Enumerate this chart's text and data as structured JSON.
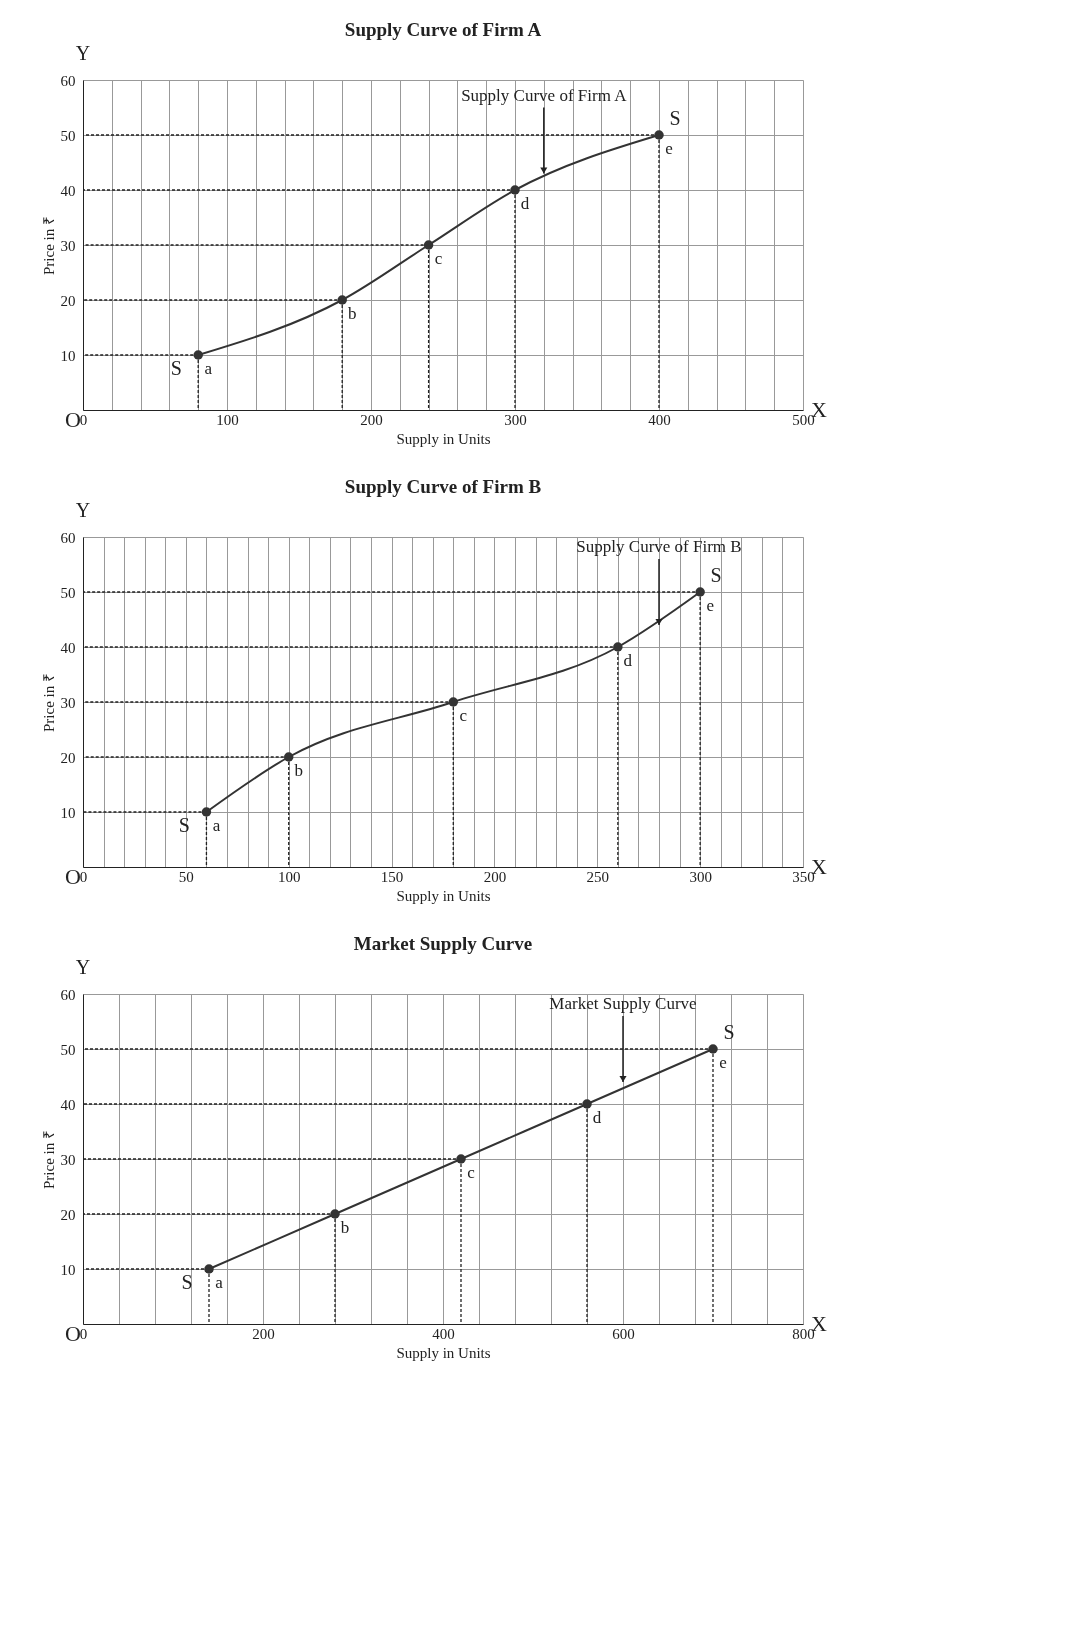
{
  "chart_data": [
    {
      "type": "line",
      "title": "Supply Curve of Firm A",
      "xlabel": "Supply in Units",
      "ylabel": "Price in ₹",
      "x": [
        80,
        180,
        240,
        300,
        400
      ],
      "series": [
        {
          "color": "#333333",
          "values": [
            10,
            20,
            30,
            40,
            50
          ]
        }
      ],
      "xlim": [
        0,
        500
      ],
      "ylim": [
        0,
        60
      ],
      "xticks": [
        0,
        {
          "value": 20,
          "label": null
        },
        {
          "value": 40,
          "label": null
        },
        {
          "value": 60,
          "label": null
        },
        {
          "value": 80,
          "label": null
        },
        100,
        {
          "value": 120,
          "label": null
        },
        {
          "value": 140,
          "label": null
        },
        {
          "value": 160,
          "label": null
        },
        {
          "value": 180,
          "label": null
        },
        200,
        {
          "value": 220,
          "label": null
        },
        {
          "value": 240,
          "label": null
        },
        {
          "value": 260,
          "label": null
        },
        {
          "value": 280,
          "label": null
        },
        300,
        {
          "value": 320,
          "label": null
        },
        {
          "value": 340,
          "label": null
        },
        {
          "value": 360,
          "label": null
        },
        {
          "value": 380,
          "label": null
        },
        400,
        {
          "value": 420,
          "label": null
        },
        {
          "value": 440,
          "label": null
        },
        {
          "value": 460,
          "label": null
        },
        {
          "value": 480,
          "label": null
        },
        500
      ],
      "yticks": [
        10,
        20,
        30,
        40,
        50,
        60
      ],
      "grid": true,
      "marker": "circle",
      "line_style": "solid",
      "legend": false,
      "annotations": [
        {
          "text": "a",
          "x": 80,
          "y": 10
        },
        {
          "text": "b",
          "x": 180,
          "y": 20
        },
        {
          "text": "c",
          "x": 240,
          "y": 30
        },
        {
          "text": "d",
          "x": 300,
          "y": 40
        },
        {
          "text": "e",
          "x": 400,
          "y": 50
        },
        "S",
        "S",
        {
          "text": "Supply Curve of Firm A",
          "x": 320,
          "y": 43
        },
        "O",
        "X",
        "Y"
      ]
    },
    {
      "type": "line",
      "title": "Supply Curve of Firm B",
      "xlabel": "Supply in Units",
      "ylabel": "Price in ₹",
      "x": [
        60,
        100,
        180,
        260,
        300
      ],
      "series": [
        {
          "color": "#333333",
          "values": [
            10,
            20,
            30,
            40,
            50
          ]
        }
      ],
      "xlim": [
        0,
        350
      ],
      "ylim": [
        0,
        60
      ],
      "xticks": [
        0,
        {
          "value": 10,
          "label": null
        },
        {
          "value": 20,
          "label": null
        },
        {
          "value": 30,
          "label": null
        },
        {
          "value": 40,
          "label": null
        },
        50,
        {
          "value": 60,
          "label": null
        },
        {
          "value": 70,
          "label": null
        },
        {
          "value": 80,
          "label": null
        },
        {
          "value": 90,
          "label": null
        },
        100,
        {
          "value": 110,
          "label": null
        },
        {
          "value": 120,
          "label": null
        },
        {
          "value": 130,
          "label": null
        },
        {
          "value": 140,
          "label": null
        },
        150,
        {
          "value": 160,
          "label": null
        },
        {
          "value": 170,
          "label": null
        },
        {
          "value": 180,
          "label": null
        },
        {
          "value": 190,
          "label": null
        },
        200,
        {
          "value": 210,
          "label": null
        },
        {
          "value": 220,
          "label": null
        },
        {
          "value": 230,
          "label": null
        },
        {
          "value": 240,
          "label": null
        },
        250,
        {
          "value": 260,
          "label": null
        },
        {
          "value": 270,
          "label": null
        },
        {
          "value": 280,
          "label": null
        },
        {
          "value": 290,
          "label": null
        },
        300,
        {
          "value": 310,
          "label": null
        },
        {
          "value": 320,
          "label": null
        },
        {
          "value": 330,
          "label": null
        },
        {
          "value": 340,
          "label": null
        },
        350
      ],
      "yticks": [
        10,
        20,
        30,
        40,
        50,
        60
      ],
      "grid": true,
      "marker": "circle",
      "line_style": "solid",
      "legend": false,
      "annotations": [
        {
          "text": "a",
          "x": 60,
          "y": 10
        },
        {
          "text": "b",
          "x": 100,
          "y": 20
        },
        {
          "text": "c",
          "x": 180,
          "y": 30
        },
        {
          "text": "d",
          "x": 260,
          "y": 40
        },
        {
          "text": "e",
          "x": 300,
          "y": 50
        },
        "S",
        "S",
        {
          "text": "Supply Curve of Firm B",
          "x": 280,
          "y": 44
        },
        "O",
        "X",
        "Y"
      ]
    },
    {
      "type": "line",
      "title": "Market Supply Curve",
      "xlabel": "Supply in Units",
      "ylabel": "Price in ₹",
      "x": [
        140,
        280,
        420,
        560,
        700
      ],
      "series": [
        {
          "color": "#333333",
          "values": [
            10,
            20,
            30,
            40,
            50
          ]
        }
      ],
      "xlim": [
        0,
        800
      ],
      "ylim": [
        0,
        60
      ],
      "xticks": [
        0,
        {
          "value": 40,
          "label": null
        },
        {
          "value": 80,
          "label": null
        },
        {
          "value": 120,
          "label": null
        },
        {
          "value": 160,
          "label": null
        },
        200,
        {
          "value": 240,
          "label": null
        },
        {
          "value": 280,
          "label": null
        },
        {
          "value": 320,
          "label": null
        },
        {
          "value": 360,
          "label": null
        },
        400,
        {
          "value": 440,
          "label": null
        },
        {
          "value": 480,
          "label": null
        },
        {
          "value": 520,
          "label": null
        },
        {
          "value": 560,
          "label": null
        },
        600,
        {
          "value": 640,
          "label": null
        },
        {
          "value": 680,
          "label": null
        },
        {
          "value": 720,
          "label": null
        },
        {
          "value": 760,
          "label": null
        },
        800
      ],
      "yticks": [
        10,
        20,
        30,
        40,
        50,
        60
      ],
      "grid": true,
      "marker": "circle",
      "line_style": "solid",
      "legend": false,
      "annotations": [
        {
          "text": "a",
          "x": 140,
          "y": 10
        },
        {
          "text": "b",
          "x": 280,
          "y": 20
        },
        {
          "text": "c",
          "x": 420,
          "y": 30
        },
        {
          "text": "d",
          "x": 560,
          "y": 40
        },
        {
          "text": "e",
          "x": 700,
          "y": 50
        },
        "S",
        "S",
        {
          "text": "Market Supply Curve",
          "x": 600,
          "y": 44
        },
        "O",
        "X",
        "Y"
      ]
    }
  ]
}
